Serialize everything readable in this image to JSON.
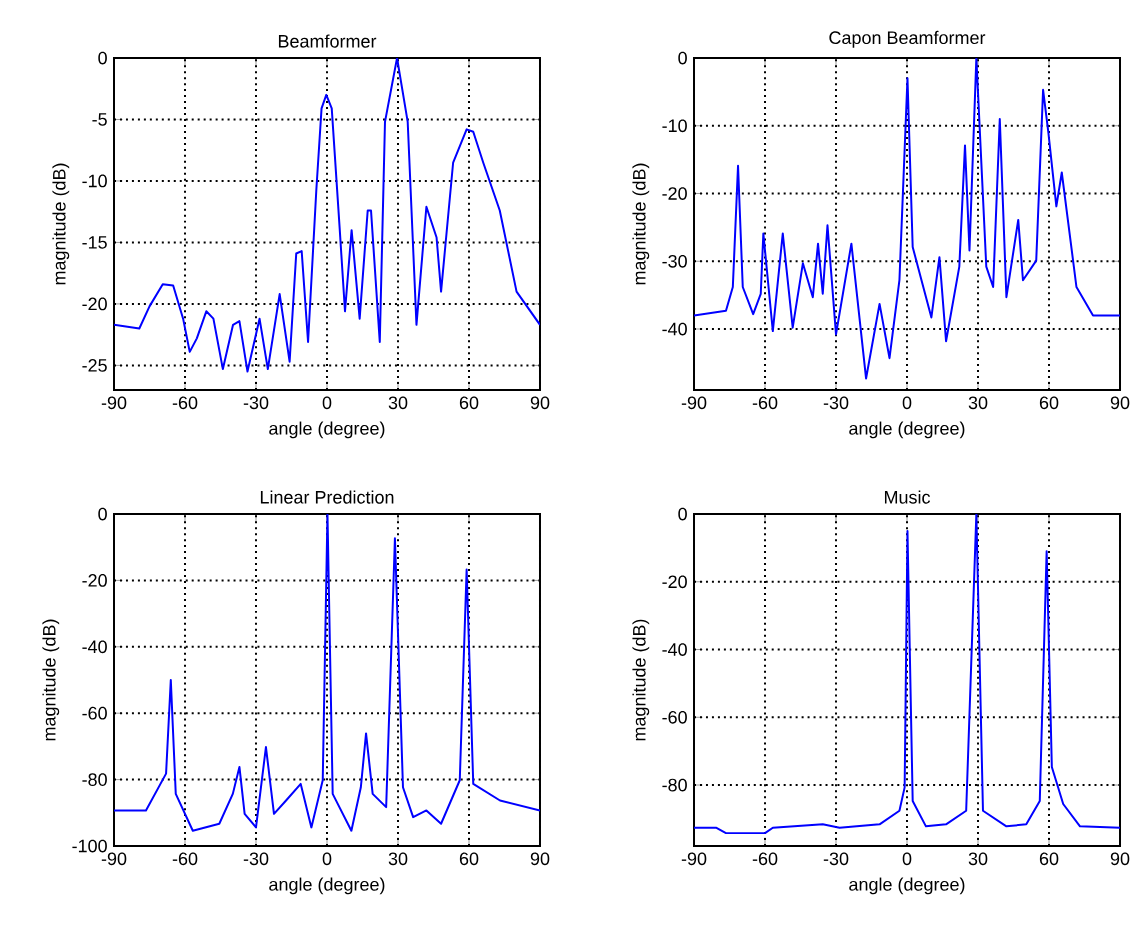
{
  "chart_data": [
    {
      "type": "line",
      "title": "Beamformer",
      "xlabel": "angle (degree)",
      "ylabel": "magnitude (dB)",
      "xlim": [
        -90,
        90
      ],
      "ylim": [
        -27,
        0
      ],
      "xticks": [
        -90,
        -60,
        -30,
        0,
        30,
        60,
        90
      ],
      "yticks": [
        -25,
        -20,
        -15,
        -10,
        -5,
        0
      ],
      "grid": true,
      "series": [
        {
          "color": "#0000ff",
          "x": [
            -90,
            -79.3,
            -75,
            -69.4,
            -65,
            -60.8,
            -58,
            -55,
            -51,
            -48,
            -44,
            -39.7,
            -37,
            -33.6,
            -28.5,
            -25,
            -20,
            -15.8,
            -13,
            -10.7,
            -8,
            -4.5,
            -2.3,
            -0.3,
            2,
            5.4,
            7.6,
            10.4,
            13.8,
            17.2,
            18.6,
            22.3,
            24.5,
            29.6,
            34.1,
            37.8,
            42,
            46.3,
            48.2,
            53.3,
            59,
            61.8,
            66,
            73,
            80.1,
            90
          ],
          "values": [
            -21.7,
            -22,
            -20.2,
            -18.4,
            -18.5,
            -21.2,
            -23.9,
            -22.8,
            -20.6,
            -21.2,
            -25.3,
            -21.7,
            -21.4,
            -25.5,
            -21.2,
            -25.3,
            -19.2,
            -24.7,
            -15.9,
            -15.7,
            -23.1,
            -10.7,
            -4.1,
            -3,
            -4.1,
            -14,
            -20.6,
            -14,
            -21.2,
            -12.4,
            -12.4,
            -23.1,
            -5.2,
            0,
            -5.2,
            -21.7,
            -12.1,
            -14.6,
            -19,
            -8.5,
            -5.8,
            -6,
            -8.5,
            -12.4,
            -19,
            -21.7
          ]
        }
      ]
    },
    {
      "type": "line",
      "title": "Capon Beamformer",
      "xlabel": "angle (degree)",
      "ylabel": "magnitude (dB)",
      "xlim": [
        -90,
        90
      ],
      "ylim": [
        -49,
        0
      ],
      "xticks": [
        -90,
        -60,
        -30,
        0,
        30,
        60,
        90
      ],
      "yticks": [
        -40,
        -30,
        -20,
        -10,
        0
      ],
      "grid": true,
      "series": [
        {
          "color": "#0000ff",
          "x": [
            -90,
            -76.5,
            -73.6,
            -71.4,
            -69.4,
            -65,
            -61.8,
            -60.7,
            -56.7,
            -52.5,
            -48.3,
            -44,
            -39.8,
            -37.6,
            -35.6,
            -33.6,
            -30,
            -23.5,
            -17.3,
            -11.6,
            -7.4,
            -3.2,
            0.2,
            2.4,
            10.3,
            13.7,
            16.5,
            22.1,
            24.5,
            26.4,
            29.3,
            33.5,
            36.4,
            39.2,
            42,
            47,
            49,
            54.6,
            57.5,
            59.7,
            63.1,
            65.4,
            71.6,
            78.6,
            90
          ],
          "values": [
            -38,
            -37.3,
            -33.8,
            -15.9,
            -33.8,
            -37.8,
            -34.8,
            -25.9,
            -40.3,
            -25.9,
            -39.8,
            -30.3,
            -35.3,
            -27.4,
            -34.8,
            -24.7,
            -40.8,
            -27.4,
            -47.3,
            -36.3,
            -44.3,
            -32.8,
            -3,
            -27.9,
            -38.3,
            -29.4,
            -41.8,
            -30.8,
            -12.9,
            -28.4,
            0,
            -30.8,
            -33.8,
            -9,
            -35.3,
            -23.9,
            -32.8,
            -29.9,
            -4.7,
            -10.9,
            -21.9,
            -16.9,
            -33.8,
            -38,
            -38
          ]
        }
      ]
    },
    {
      "type": "line",
      "title": "Linear  Prediction",
      "xlabel": "angle (degree)",
      "ylabel": "magnitude (dB)",
      "xlim": [
        -90,
        90
      ],
      "ylim": [
        -100,
        0
      ],
      "xticks": [
        -90,
        -60,
        -30,
        0,
        30,
        60,
        90
      ],
      "yticks": [
        -100,
        -80,
        -60,
        -40,
        -20,
        0
      ],
      "grid": true,
      "series": [
        {
          "color": "#0000ff",
          "x": [
            -90,
            -76.5,
            -68,
            -66,
            -63.9,
            -56.7,
            -45.5,
            -39.8,
            -37,
            -34.8,
            -30,
            -25.8,
            -22.4,
            -17.3,
            -11.1,
            -6.6,
            -1.8,
            0.2,
            2.4,
            10.3,
            14.3,
            16.5,
            19.3,
            25,
            28.7,
            32.1,
            36.4,
            42,
            48.2,
            56.1,
            59,
            61.8,
            73.1,
            90
          ],
          "values": [
            -89.3,
            -89.3,
            -78.2,
            -50,
            -84.3,
            -95.4,
            -93.3,
            -84.3,
            -76.2,
            -90.3,
            -94.4,
            -70.2,
            -90.3,
            -86.3,
            -81.3,
            -94.4,
            -80.2,
            0,
            -84.3,
            -95.4,
            -82.3,
            -66.1,
            -84.3,
            -88.3,
            -7.3,
            -82.3,
            -91.3,
            -89.3,
            -93.3,
            -80.2,
            -16.7,
            -81.3,
            -86.3,
            -89.3
          ]
        }
      ]
    },
    {
      "type": "line",
      "title": "Music",
      "xlabel": "angle (degree)",
      "ylabel": "magnitude (dB)",
      "xlim": [
        -90,
        90
      ],
      "ylim": [
        -98,
        0
      ],
      "xticks": [
        -90,
        -60,
        -30,
        0,
        30,
        60,
        90
      ],
      "yticks": [
        -80,
        -60,
        -40,
        -20,
        0
      ],
      "grid": true,
      "series": [
        {
          "color": "#0000ff",
          "x": [
            -90,
            -80.7,
            -76.5,
            -60,
            -56.7,
            -35.6,
            -28.5,
            -11.6,
            -3.2,
            -1,
            0.2,
            2.4,
            8,
            16.5,
            25,
            29.3,
            32.1,
            42,
            50.4,
            56.1,
            59,
            61.2,
            66,
            73.1,
            90
          ],
          "values": [
            -92.6,
            -92.6,
            -94.2,
            -94.2,
            -92.6,
            -91.6,
            -92.6,
            -91.6,
            -87.6,
            -80.7,
            -5,
            -84.7,
            -92.2,
            -91.6,
            -87.6,
            0,
            -87.6,
            -92.2,
            -91.6,
            -84.7,
            -11,
            -74.7,
            -85.6,
            -92.2,
            -92.6
          ]
        }
      ]
    }
  ]
}
